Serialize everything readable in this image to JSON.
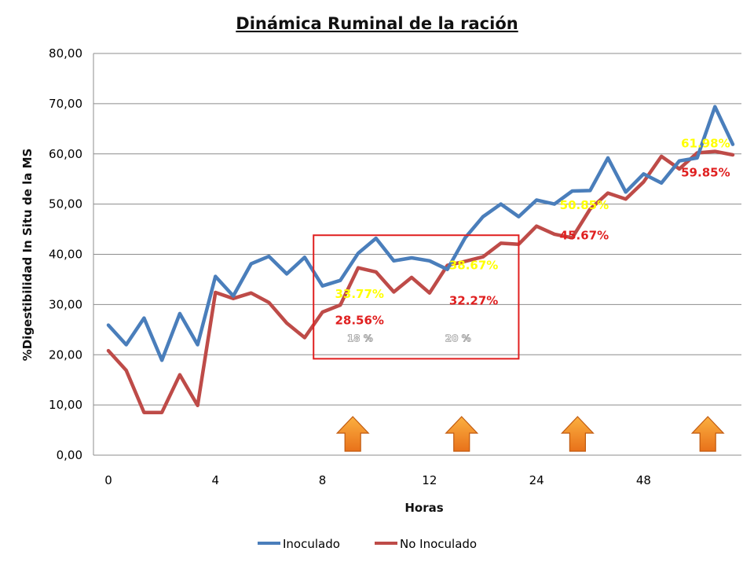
{
  "chart_data": {
    "type": "line",
    "title": "Dinámica Ruminal de la ración",
    "xlabel": "Horas",
    "ylabel": "%Digestibilidad In Situ de la MS",
    "ylim": [
      0,
      80
    ],
    "y_ticks": [
      "0,00",
      "10,00",
      "20,00",
      "30,00",
      "40,00",
      "50,00",
      "60,00",
      "70,00",
      "80,00"
    ],
    "x_tick_labels": [
      {
        "index": 0,
        "label": "0"
      },
      {
        "index": 6,
        "label": "4"
      },
      {
        "index": 12,
        "label": "8"
      },
      {
        "index": 18,
        "label": "12"
      },
      {
        "index": 24,
        "label": "24"
      },
      {
        "index": 30,
        "label": "48"
      }
    ],
    "grid": true,
    "legend": "bottom",
    "series": [
      {
        "name": "Inoculado",
        "color": "#4a7ebb",
        "values": [
          25.9,
          22.0,
          27.3,
          18.9,
          28.2,
          22.0,
          35.6,
          31.7,
          38.1,
          39.6,
          36.1,
          39.4,
          33.7,
          34.8,
          40.2,
          43.2,
          38.7,
          39.3,
          38.7,
          37.0,
          43.3,
          47.5,
          50.0,
          47.5,
          50.8,
          50.0,
          52.6,
          52.7,
          59.2,
          52.4,
          56.0,
          54.2,
          58.6,
          59.2,
          69.4,
          61.9
        ]
      },
      {
        "name": "No Inoculado",
        "color": "#be4b48",
        "values": [
          20.8,
          16.9,
          8.5,
          8.5,
          16.0,
          9.9,
          32.4,
          31.2,
          32.3,
          30.4,
          26.3,
          23.4,
          28.5,
          29.9,
          37.3,
          36.5,
          32.5,
          35.4,
          32.3,
          37.8,
          38.6,
          39.5,
          42.2,
          42.0,
          45.6,
          44.0,
          43.3,
          49.0,
          52.2,
          51.0,
          54.4,
          59.5,
          57.0,
          60.2,
          60.5,
          59.8
        ]
      }
    ],
    "annotations": [
      {
        "text": "61.98%",
        "color": "#ffff00"
      },
      {
        "text": "59.85%",
        "color": "#e02020"
      },
      {
        "text": "50.85%",
        "color": "#ffff00"
      },
      {
        "text": "45.67%",
        "color": "#e02020"
      },
      {
        "text": "38.67%",
        "color": "#ffff00"
      },
      {
        "text": "32.27%",
        "color": "#e02020"
      },
      {
        "text": "33.77%",
        "color": "#ffff00"
      },
      {
        "text": "28.56%",
        "color": "#e02020"
      }
    ],
    "highlight_box_labels": [
      "18 %",
      "20 %"
    ],
    "highlight_box_color": "#e02020",
    "arrow_color": "#f08a24",
    "arrow_count": 4
  }
}
